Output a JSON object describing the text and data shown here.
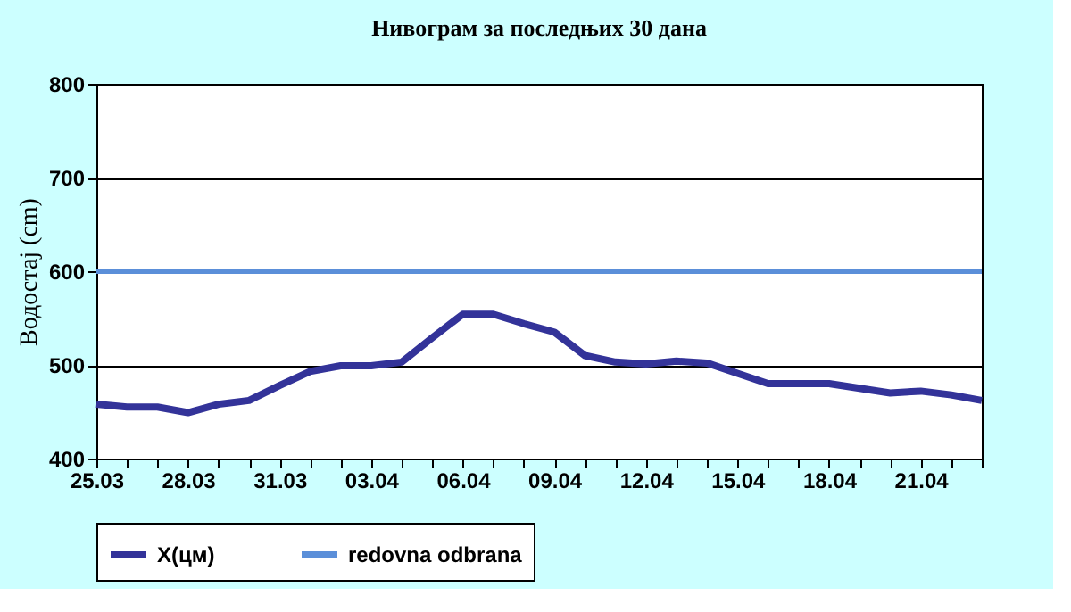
{
  "chart_data": {
    "type": "line",
    "title": "Нивограм за последњих 30 дана",
    "ylabel": "Водостај (cm)",
    "categories": [
      "25.03",
      null,
      null,
      "28.03",
      null,
      null,
      "31.03",
      null,
      null,
      "03.04",
      null,
      null,
      "06.04",
      null,
      null,
      "09.04",
      null,
      null,
      "12.04",
      null,
      null,
      "15.04",
      null,
      null,
      "18.04",
      null,
      null,
      "21.04",
      null,
      null
    ],
    "series": [
      {
        "name": "X(цм)",
        "color": "#333399",
        "values": [
          458,
          455,
          455,
          449,
          458,
          462,
          478,
          493,
          499,
          499,
          503,
          529,
          554,
          554,
          544,
          535,
          510,
          503,
          501,
          504,
          502,
          491,
          480,
          480,
          480,
          475,
          470,
          472,
          468,
          462
        ]
      }
    ],
    "ref_lines": [
      {
        "axis": "y",
        "value": 600,
        "label": "redovna odbrana",
        "color": "#5b8fd9"
      }
    ],
    "ylim": [
      400,
      800
    ],
    "yticks": [
      400,
      500,
      600,
      700,
      800
    ],
    "grid": "y",
    "legend": "bottom",
    "marker": "none",
    "line_style": "solid"
  }
}
